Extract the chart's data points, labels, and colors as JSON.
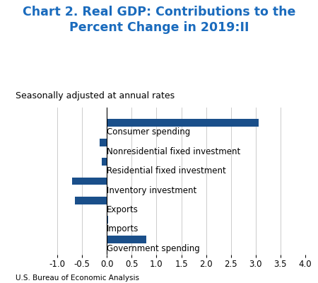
{
  "title": "Chart 2. Real GDP: Contributions to the\nPercent Change in 2019:II",
  "subtitle": "Seasonally adjusted at annual rates",
  "footnote": "U.S. Bureau of Economic Analysis",
  "categories": [
    "Consumer spending",
    "Nonresidential fixed investment",
    "Residential fixed investment",
    "Inventory investment",
    "Exports",
    "Imports",
    "Government spending"
  ],
  "values": [
    3.06,
    -0.15,
    -0.1,
    -0.7,
    -0.65,
    0.02,
    0.8
  ],
  "bar_color": "#1a4f8a",
  "xlim": [
    -1.0,
    4.0
  ],
  "xticks": [
    -1.0,
    -0.5,
    0.0,
    0.5,
    1.0,
    1.5,
    2.0,
    2.5,
    3.0,
    3.5,
    4.0
  ],
  "title_color": "#1a6bbd",
  "title_fontsize": 12.5,
  "subtitle_fontsize": 9,
  "label_fontsize": 8.5,
  "tick_fontsize": 8.5,
  "footnote_fontsize": 7.5,
  "bar_height": 0.4
}
